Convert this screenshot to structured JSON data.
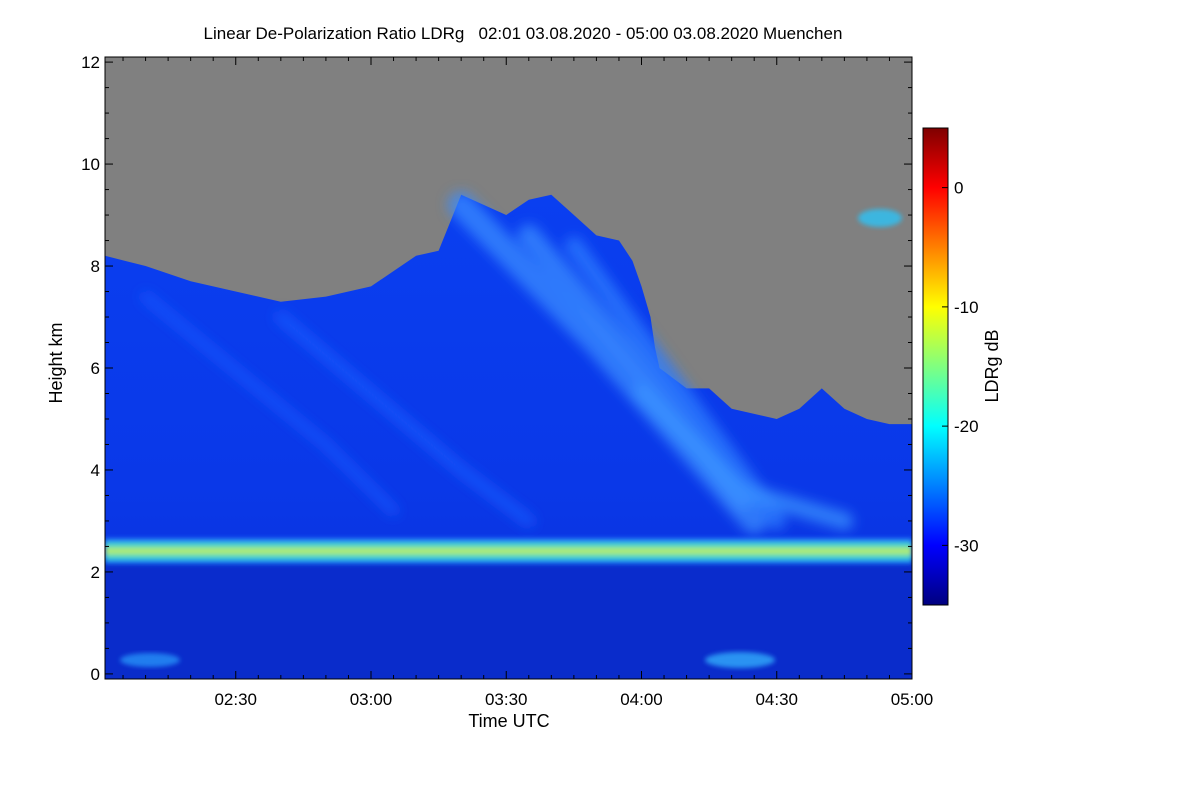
{
  "chart_data": {
    "type": "heatmap",
    "title": "Linear De-Polarization Ratio LDRg   02:01 03.08.2020 - 05:00 03.08.2020 Muenchen",
    "xlabel": "Time UTC",
    "ylabel": "Height km",
    "x_ticks": [
      "02:30",
      "03:00",
      "03:30",
      "04:00",
      "04:30",
      "05:00"
    ],
    "x_tick_minutes": [
      150,
      180,
      210,
      240,
      270,
      300
    ],
    "xlim_minutes": [
      121,
      300
    ],
    "y_ticks": [
      0,
      2,
      4,
      6,
      8,
      10,
      12
    ],
    "ylim": [
      -0.1,
      12.1
    ],
    "colorbar": {
      "label": "LDRg dB",
      "ticks": [
        0,
        -10,
        -20,
        -30
      ],
      "range": [
        -35,
        5
      ],
      "colormap": "jet"
    },
    "no_signal_color": "#808080",
    "features": {
      "melting_layer_km": 2.5,
      "melting_layer_ldr_db": -15,
      "background_ldr_db": -30,
      "below_melting_ldr_db": -33,
      "cirrus_fallstreak_ldr_db": -26,
      "signal_top_km": [
        [
          121,
          8.2
        ],
        [
          130,
          8.0
        ],
        [
          140,
          7.7
        ],
        [
          150,
          7.5
        ],
        [
          160,
          7.3
        ],
        [
          170,
          7.4
        ],
        [
          180,
          7.6
        ],
        [
          185,
          7.9
        ],
        [
          190,
          8.2
        ],
        [
          195,
          8.3
        ],
        [
          200,
          9.4
        ],
        [
          205,
          9.2
        ],
        [
          210,
          9.0
        ],
        [
          215,
          9.3
        ],
        [
          220,
          9.4
        ],
        [
          225,
          9.0
        ],
        [
          230,
          8.6
        ],
        [
          235,
          8.5
        ],
        [
          238,
          8.1
        ],
        [
          240,
          7.6
        ],
        [
          242,
          7.0
        ],
        [
          243,
          6.4
        ],
        [
          244,
          6.0
        ],
        [
          250,
          5.6
        ],
        [
          255,
          5.6
        ],
        [
          260,
          5.2
        ],
        [
          265,
          5.1
        ],
        [
          270,
          5.0
        ],
        [
          275,
          5.2
        ],
        [
          280,
          5.6
        ],
        [
          285,
          5.2
        ],
        [
          290,
          5.0
        ],
        [
          295,
          4.9
        ],
        [
          300,
          4.9
        ]
      ]
    }
  }
}
